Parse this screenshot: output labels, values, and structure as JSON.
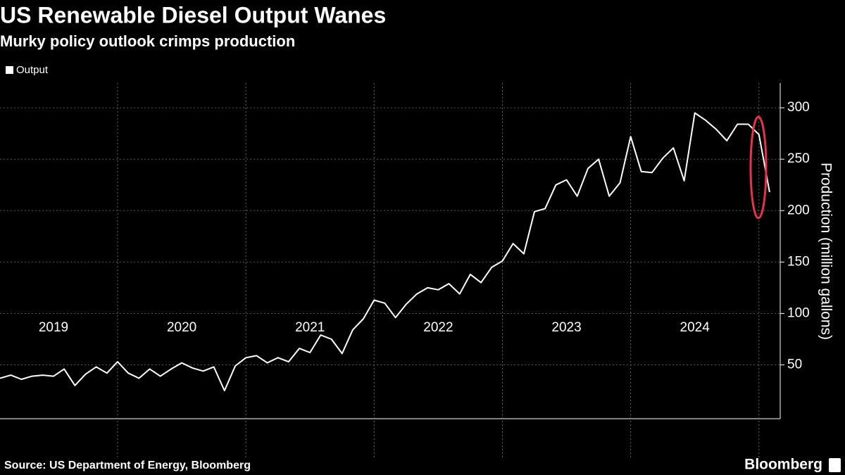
{
  "chart_data": {
    "type": "line",
    "title": "US Renewable Diesel Output Wanes",
    "subtitle": "Murky policy outlook crimps production",
    "y_axis_label": "Production (million gallons)",
    "source": "Source: US Department of Energy, Bloomberg",
    "brand": "Bloomberg",
    "x": [
      2019.083,
      2019.167,
      2019.25,
      2019.333,
      2019.417,
      2019.5,
      2019.583,
      2019.667,
      2019.75,
      2019.833,
      2019.917,
      2020.0,
      2020.083,
      2020.167,
      2020.25,
      2020.333,
      2020.417,
      2020.5,
      2020.583,
      2020.667,
      2020.75,
      2020.833,
      2020.917,
      2021.0,
      2021.083,
      2021.167,
      2021.25,
      2021.333,
      2021.417,
      2021.5,
      2021.583,
      2021.667,
      2021.75,
      2021.833,
      2021.917,
      2022.0,
      2022.083,
      2022.167,
      2022.25,
      2022.333,
      2022.417,
      2022.5,
      2022.583,
      2022.667,
      2022.75,
      2022.833,
      2022.917,
      2023.0,
      2023.083,
      2023.167,
      2023.25,
      2023.333,
      2023.417,
      2023.5,
      2023.583,
      2023.667,
      2023.75,
      2023.833,
      2023.917,
      2024.0,
      2024.083,
      2024.167,
      2024.25,
      2024.333,
      2024.417,
      2024.5,
      2024.583,
      2024.667,
      2024.75,
      2024.833,
      2024.917,
      2025.0,
      2025.083
    ],
    "series": [
      {
        "name": "Output",
        "color": "#ffffff",
        "values": [
          37,
          40,
          36,
          39,
          40,
          39,
          46,
          30,
          41,
          48,
          42,
          53,
          42,
          37,
          46,
          39,
          46,
          52,
          47,
          44,
          48,
          25,
          49,
          57,
          59,
          52,
          57,
          53,
          66,
          62,
          79,
          75,
          61,
          84,
          95,
          113,
          110,
          96,
          109,
          119,
          125,
          123,
          129,
          119,
          138,
          130,
          145,
          151,
          168,
          158,
          199,
          202,
          225,
          230,
          214,
          241,
          250,
          214,
          227,
          272,
          238,
          237,
          251,
          261,
          229,
          295,
          288,
          279,
          268,
          284,
          284,
          274,
          218
        ]
      }
    ],
    "xlim": [
      2019.083,
      2025.166
    ],
    "xticks": [
      2019,
      2020,
      2021,
      2022,
      2023,
      2024
    ],
    "x_gridlines": [
      2020,
      2021,
      2022,
      2023,
      2024,
      2025
    ],
    "ylim": [
      0,
      322
    ],
    "yticks": [
      50,
      100,
      150,
      200,
      250,
      300
    ],
    "grid": true
  }
}
